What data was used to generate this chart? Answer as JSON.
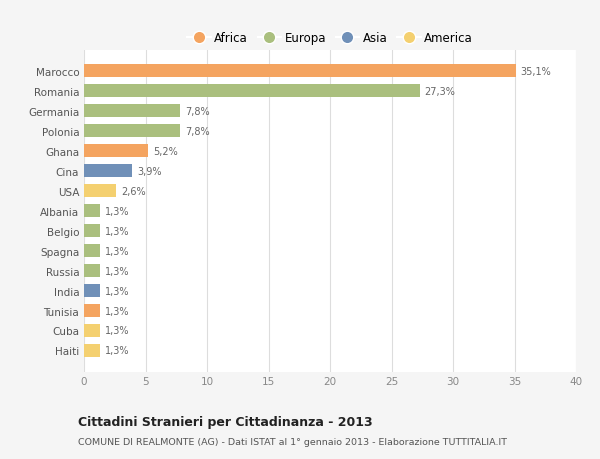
{
  "categories": [
    "Marocco",
    "Romania",
    "Germania",
    "Polonia",
    "Ghana",
    "Cina",
    "USA",
    "Albania",
    "Belgio",
    "Spagna",
    "Russia",
    "India",
    "Tunisia",
    "Cuba",
    "Haiti"
  ],
  "values": [
    35.1,
    27.3,
    7.8,
    7.8,
    5.2,
    3.9,
    2.6,
    1.3,
    1.3,
    1.3,
    1.3,
    1.3,
    1.3,
    1.3,
    1.3
  ],
  "labels": [
    "35,1%",
    "27,3%",
    "7,8%",
    "7,8%",
    "5,2%",
    "3,9%",
    "2,6%",
    "1,3%",
    "1,3%",
    "1,3%",
    "1,3%",
    "1,3%",
    "1,3%",
    "1,3%",
    "1,3%"
  ],
  "colors": [
    "#F4A460",
    "#AABF7E",
    "#AABF7E",
    "#AABF7E",
    "#F4A460",
    "#7090B8",
    "#F4D070",
    "#AABF7E",
    "#AABF7E",
    "#AABF7E",
    "#AABF7E",
    "#7090B8",
    "#F4A460",
    "#F4D070",
    "#F4D070"
  ],
  "legend_labels": [
    "Africa",
    "Europa",
    "Asia",
    "America"
  ],
  "legend_colors": [
    "#F4A460",
    "#AABF7E",
    "#7090B8",
    "#F4D070"
  ],
  "title": "Cittadini Stranieri per Cittadinanza - 2013",
  "subtitle": "COMUNE DI REALMONTE (AG) - Dati ISTAT al 1° gennaio 2013 - Elaborazione TUTTITALIA.IT",
  "xlim": [
    0,
    40
  ],
  "xticks": [
    0,
    5,
    10,
    15,
    20,
    25,
    30,
    35,
    40
  ],
  "background_color": "#f5f5f5",
  "bar_background": "#ffffff"
}
